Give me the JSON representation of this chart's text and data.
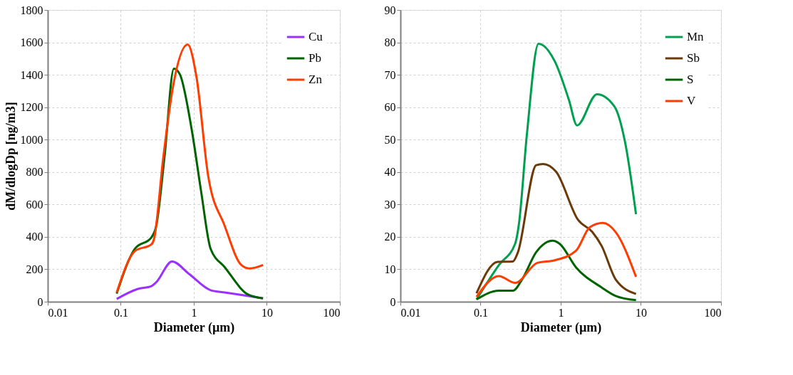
{
  "chart_data": [
    {
      "type": "line",
      "xlabel": "Diameter (µm)",
      "ylabel": "dM/dlogDp [ng/m3]",
      "log": "x",
      "grid": true,
      "legend": "top right",
      "xlim": [
        0.01,
        100
      ],
      "xticks": [
        0.01,
        0.1,
        1,
        10,
        100
      ],
      "ylim": [
        0,
        1800
      ],
      "yticks": [
        0,
        200,
        400,
        600,
        800,
        1000,
        1200,
        1400,
        1600,
        1800
      ],
      "series": [
        {
          "name": "Cu",
          "color": "#9b30ff",
          "x": [
            0.088,
            0.169,
            0.263,
            0.306,
            0.504,
            0.868,
            1.7,
            2.65,
            5.59,
            8.87
          ],
          "values": [
            17,
            78,
            96,
            120,
            248,
            170,
            71,
            57,
            35,
            21
          ]
        },
        {
          "name": "Pb",
          "color": "#006400",
          "x": [
            0.088,
            0.156,
            0.263,
            0.306,
            0.397,
            0.534,
            0.644,
            0.935,
            1.26,
            1.7,
            2.65,
            5.59,
            8.87
          ],
          "values": [
            50,
            326,
            397,
            468,
            893,
            1438,
            1403,
            1063,
            680,
            326,
            213,
            43,
            21
          ]
        },
        {
          "name": "Zn",
          "color": "#ff3d00",
          "x": [
            0.088,
            0.156,
            0.263,
            0.284,
            0.383,
            0.515,
            0.824,
            1.086,
            1.57,
            2.65,
            4.47,
            5.8,
            8.87
          ],
          "values": [
            57,
            312,
            354,
            383,
            893,
            1318,
            1587,
            1389,
            779,
            468,
            227,
            205,
            227
          ]
        }
      ]
    },
    {
      "type": "line",
      "xlabel": "Diameter (µm)",
      "log": "x",
      "grid": true,
      "legend": "top right",
      "xlim": [
        0.01,
        100
      ],
      "xticks": [
        0.01,
        0.1,
        1,
        10,
        100
      ],
      "ylim": [
        0,
        90
      ],
      "yticks": [
        0,
        10,
        20,
        30,
        40,
        50,
        60,
        70,
        80,
        90
      ],
      "series": [
        {
          "name": "Mn",
          "color": "#00a050",
          "x": [
            0.089,
            0.169,
            0.27,
            0.3,
            0.378,
            0.528,
            0.845,
            1.26,
            1.6,
            2.83,
            4.69,
            6.34,
            8.69
          ],
          "values": [
            0.7,
            11.3,
            17.9,
            23.7,
            51.5,
            79.6,
            74.1,
            62.4,
            54.4,
            64.0,
            60.2,
            49.3,
            27.0
          ]
        },
        {
          "name": "Sb",
          "color": "#6b3a0a",
          "x": [
            0.089,
            0.163,
            0.253,
            0.29,
            0.494,
            0.604,
            0.875,
            1.65,
            2.48,
            3.24,
            4.84,
            8.69
          ],
          "values": [
            2.6,
            12.3,
            12.4,
            15.0,
            42.1,
            42.5,
            40.1,
            25.2,
            21.5,
            17.2,
            6.9,
            2.4
          ]
        },
        {
          "name": "S",
          "color": "#006400",
          "x": [
            0.089,
            0.169,
            0.253,
            0.33,
            0.494,
            0.791,
            0.967,
            1.55,
            3.24,
            4.84,
            8.69
          ],
          "values": [
            0.7,
            3.4,
            3.4,
            6.9,
            15.3,
            18.8,
            17.9,
            10.6,
            4.4,
            1.8,
            0.5
          ]
        },
        {
          "name": "V",
          "color": "#ff3d00",
          "x": [
            0.089,
            0.169,
            0.27,
            0.511,
            0.845,
            1.55,
            2.31,
            3.35,
            4.84,
            8.69
          ],
          "values": [
            1.5,
            7.9,
            5.8,
            12.0,
            12.8,
            15.7,
            23.0,
            24.3,
            21.5,
            7.7
          ]
        }
      ]
    }
  ]
}
